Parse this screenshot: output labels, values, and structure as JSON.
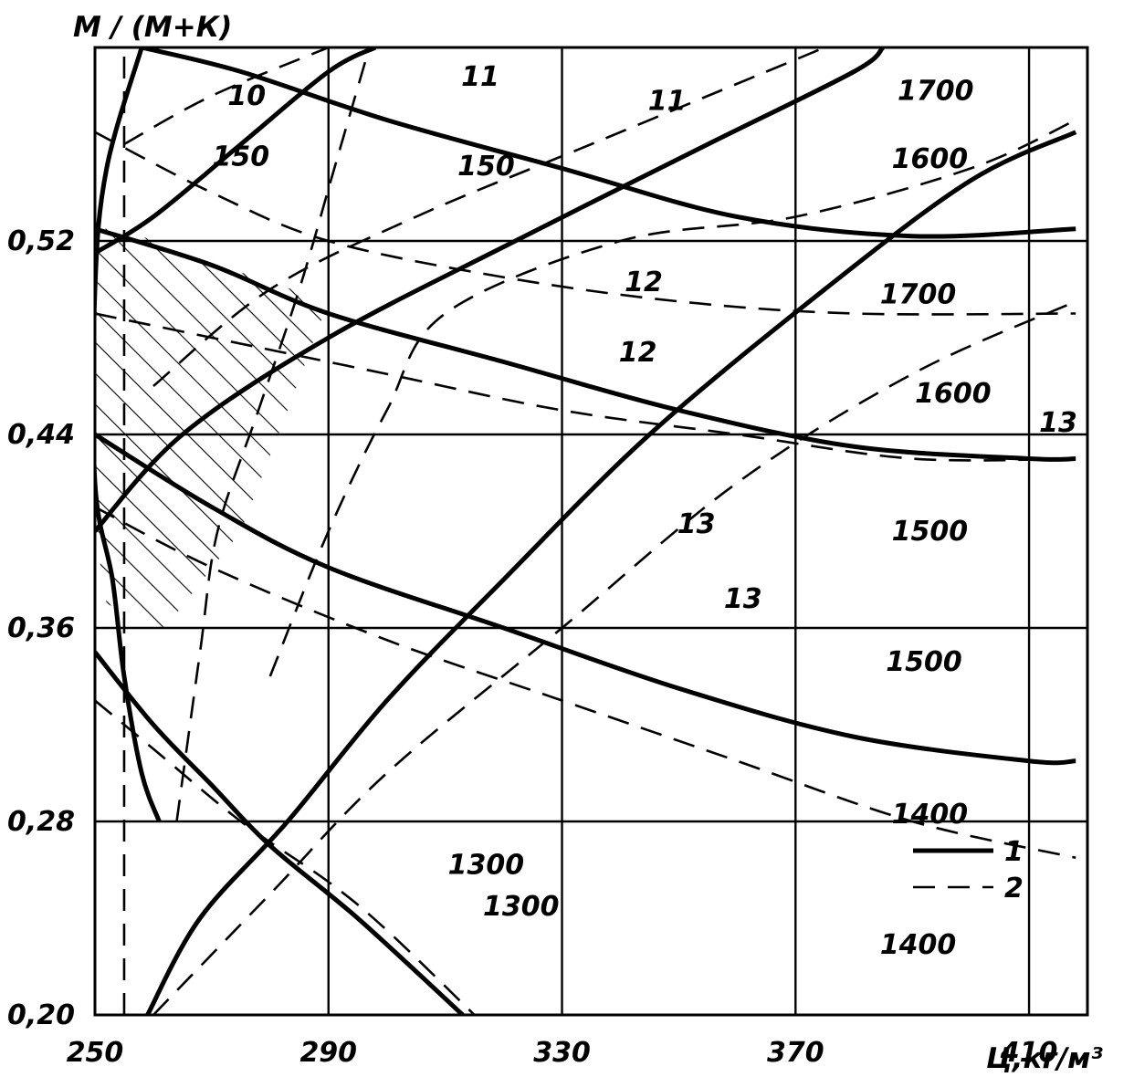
{
  "chart_data": {
    "type": "line",
    "title": "",
    "ylabel": "М / (М+К)",
    "xlabel": "Ц,кг/м³",
    "xlim": [
      250,
      420
    ],
    "ylim": [
      0.2,
      0.6
    ],
    "grid": true,
    "x_ticks": [
      250,
      290,
      330,
      370,
      410
    ],
    "x_tick_labels": [
      "250",
      "290",
      "330",
      "370",
      "410"
    ],
    "y_ticks": [
      0.2,
      0.28,
      0.36,
      0.44,
      0.52
    ],
    "y_tick_labels": [
      "0,20",
      "0,28",
      "0,36",
      "0,44",
      "0,52"
    ],
    "legend": {
      "placement": "bottom-right",
      "entries": [
        {
          "label": "1",
          "style": "solid"
        },
        {
          "label": "2",
          "style": "dashed"
        }
      ]
    },
    "series": [
      {
        "group": "density",
        "style": "solid",
        "points": [
          [
            259,
            0.2
          ],
          [
            268,
            0.24
          ],
          [
            283,
            0.28
          ],
          [
            300,
            0.33
          ],
          [
            320,
            0.38
          ],
          [
            345,
            0.44
          ],
          [
            375,
            0.5
          ],
          [
            400,
            0.545
          ],
          [
            418,
            0.565
          ]
        ]
      },
      {
        "group": "density",
        "style": "solid",
        "points": [
          [
            250,
            0.4
          ],
          [
            265,
            0.44
          ],
          [
            290,
            0.48
          ],
          [
            322,
            0.52
          ],
          [
            355,
            0.56
          ],
          [
            380,
            0.59
          ],
          [
            385,
            0.6
          ]
        ]
      },
      {
        "group": "density",
        "style": "solid",
        "points": [
          [
            250,
            0.515
          ],
          [
            260,
            0.53
          ],
          [
            275,
            0.56
          ],
          [
            290,
            0.59
          ],
          [
            298,
            0.6
          ]
        ]
      },
      {
        "group": "density",
        "style": "solid",
        "points": [
          [
            258,
            0.6
          ],
          [
            275,
            0.59
          ],
          [
            300,
            0.57
          ],
          [
            330,
            0.55
          ],
          [
            360,
            0.53
          ],
          [
            390,
            0.522
          ],
          [
            418,
            0.525
          ]
        ]
      },
      {
        "group": "density",
        "style": "solid",
        "points": [
          [
            250,
            0.525
          ],
          [
            270,
            0.51
          ],
          [
            290,
            0.49
          ],
          [
            320,
            0.47
          ],
          [
            350,
            0.45
          ],
          [
            380,
            0.435
          ],
          [
            410,
            0.43
          ],
          [
            418,
            0.43
          ]
        ]
      },
      {
        "group": "density",
        "style": "solid",
        "points": [
          [
            250,
            0.44
          ],
          [
            270,
            0.41
          ],
          [
            290,
            0.385
          ],
          [
            320,
            0.36
          ],
          [
            350,
            0.335
          ],
          [
            380,
            0.315
          ],
          [
            410,
            0.305
          ],
          [
            418,
            0.305
          ]
        ]
      },
      {
        "group": "density",
        "style": "solid",
        "points": [
          [
            250,
            0.35
          ],
          [
            260,
            0.32
          ],
          [
            270,
            0.295
          ],
          [
            280,
            0.27
          ],
          [
            295,
            0.24
          ],
          [
            313,
            0.2
          ]
        ]
      },
      {
        "group": "density",
        "style": "solid",
        "points": [
          [
            258,
            0.6
          ],
          [
            252,
            0.55
          ],
          [
            250,
            0.5
          ],
          [
            250,
            0.42
          ],
          [
            253,
            0.38
          ],
          [
            255,
            0.34
          ],
          [
            258,
            0.3
          ],
          [
            261,
            0.28
          ]
        ]
      },
      {
        "group": "density",
        "style": "dashed",
        "points": [
          [
            260,
            0.2
          ],
          [
            280,
            0.25
          ],
          [
            300,
            0.3
          ],
          [
            330,
            0.36
          ],
          [
            360,
            0.42
          ],
          [
            390,
            0.465
          ],
          [
            418,
            0.495
          ]
        ]
      },
      {
        "group": "density",
        "style": "dashed",
        "points": [
          [
            260,
            0.46
          ],
          [
            280,
            0.5
          ],
          [
            305,
            0.53
          ],
          [
            335,
            0.56
          ],
          [
            365,
            0.59
          ],
          [
            375,
            0.6
          ]
        ]
      },
      {
        "group": "density",
        "style": "dashed",
        "points": [
          [
            255,
            0.56
          ],
          [
            270,
            0.58
          ],
          [
            290,
            0.6
          ]
        ]
      },
      {
        "group": "density",
        "style": "dashed",
        "points": [
          [
            264,
            0.28
          ],
          [
            268,
            0.35
          ],
          [
            271,
            0.4
          ],
          [
            278,
            0.45
          ],
          [
            285,
            0.5
          ],
          [
            291,
            0.55
          ],
          [
            297,
            0.6
          ]
        ]
      },
      {
        "group": "density",
        "style": "dashed",
        "points": [
          [
            250,
            0.565
          ],
          [
            270,
            0.54
          ],
          [
            290,
            0.52
          ],
          [
            320,
            0.505
          ],
          [
            350,
            0.495
          ],
          [
            380,
            0.49
          ],
          [
            418,
            0.49
          ]
        ]
      },
      {
        "group": "density",
        "style": "dashed",
        "points": [
          [
            250,
            0.49
          ],
          [
            270,
            0.48
          ],
          [
            300,
            0.465
          ],
          [
            330,
            0.45
          ],
          [
            360,
            0.44
          ],
          [
            390,
            0.43
          ],
          [
            418,
            0.43
          ]
        ]
      },
      {
        "group": "density",
        "style": "dashed",
        "points": [
          [
            250,
            0.41
          ],
          [
            270,
            0.385
          ],
          [
            300,
            0.355
          ],
          [
            330,
            0.33
          ],
          [
            360,
            0.305
          ],
          [
            390,
            0.28
          ],
          [
            418,
            0.265
          ]
        ]
      },
      {
        "group": "density",
        "style": "dashed",
        "points": [
          [
            255,
            0.2
          ],
          [
            255,
            0.6
          ]
        ]
      },
      {
        "group": "density",
        "style": "dashed",
        "points": [
          [
            280,
            0.34
          ],
          [
            290,
            0.4
          ],
          [
            300,
            0.45
          ],
          [
            310,
            0.49
          ],
          [
            340,
            0.52
          ],
          [
            370,
            0.53
          ],
          [
            400,
            0.55
          ],
          [
            418,
            0.57
          ]
        ]
      },
      {
        "group": "density",
        "style": "dashed",
        "points": [
          [
            250,
            0.33
          ],
          [
            260,
            0.31
          ],
          [
            275,
            0.28
          ],
          [
            290,
            0.255
          ],
          [
            300,
            0.235
          ],
          [
            315,
            0.2
          ]
        ]
      }
    ],
    "annotations": [
      {
        "text": "10",
        "x": 276,
        "y": 0.58
      },
      {
        "text": "150",
        "x": 275,
        "y": 0.555
      },
      {
        "text": "11",
        "x": 316,
        "y": 0.588
      },
      {
        "text": "11",
        "x": 348,
        "y": 0.578
      },
      {
        "text": "150",
        "x": 317,
        "y": 0.551
      },
      {
        "text": "12",
        "x": 344,
        "y": 0.503
      },
      {
        "text": "12",
        "x": 343,
        "y": 0.474
      },
      {
        "text": "1700",
        "x": 394,
        "y": 0.582
      },
      {
        "text": "1600",
        "x": 393,
        "y": 0.554
      },
      {
        "text": "1700",
        "x": 391,
        "y": 0.498
      },
      {
        "text": "1600",
        "x": 397,
        "y": 0.457
      },
      {
        "text": "13",
        "x": 415,
        "y": 0.445
      },
      {
        "text": "13",
        "x": 353,
        "y": 0.403
      },
      {
        "text": "13",
        "x": 361,
        "y": 0.372
      },
      {
        "text": "1500",
        "x": 393,
        "y": 0.4
      },
      {
        "text": "1500",
        "x": 392,
        "y": 0.346
      },
      {
        "text": "1400",
        "x": 393,
        "y": 0.283
      },
      {
        "text": "1300",
        "x": 317,
        "y": 0.262
      },
      {
        "text": "1300",
        "x": 323,
        "y": 0.245
      },
      {
        "text": "1400",
        "x": 391,
        "y": 0.229
      }
    ],
    "shaded_region": {
      "description_points": [
        [
          250,
          0.525
        ],
        [
          255,
          0.525
        ],
        [
          265,
          0.515
        ],
        [
          290,
          0.495
        ],
        [
          283,
          0.45
        ],
        [
          275,
          0.4
        ],
        [
          262,
          0.36
        ],
        [
          252,
          0.37
        ],
        [
          250,
          0.4
        ]
      ]
    }
  }
}
